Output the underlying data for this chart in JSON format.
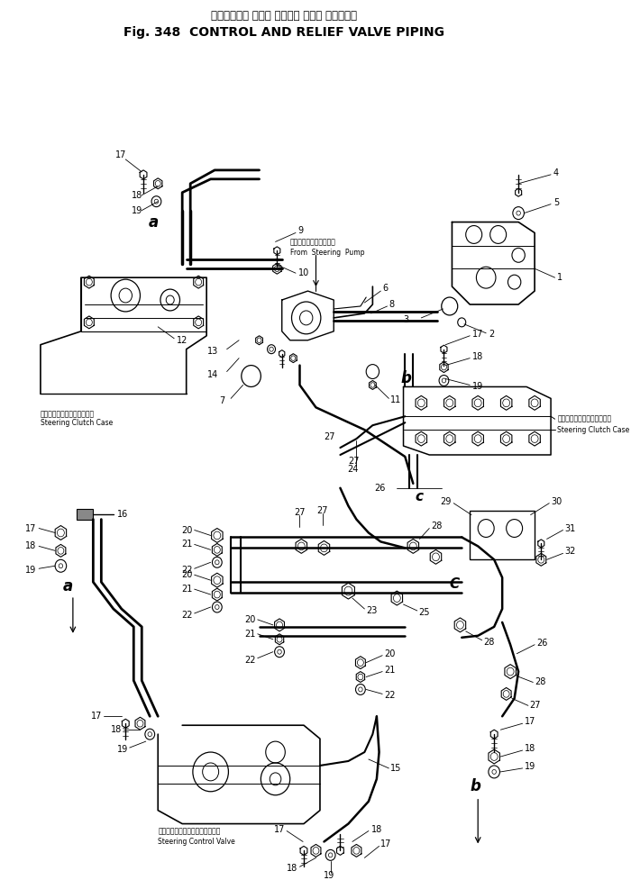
{
  "title_japanese": "コントロール および リリーフ バルブ パイピング",
  "title_english": "Fig. 348  CONTROL AND RELIEF VALVE PIPING",
  "background_color": "#ffffff",
  "line_color": "#000000",
  "text_color": "#000000",
  "fig_width": 7.0,
  "fig_height": 9.77,
  "dpi": 100,
  "sub_labels": {
    "steering_clutch_case_top_jp": "ステアリングクラッチケース",
    "steering_clutch_case_top_en": "Steering Clutch Case",
    "steering_clutch_case_right_jp": "ステアリングクラッチケース",
    "steering_clutch_case_right_en": "Steering Clutch Case",
    "from_steering_pump_jp": "ステアリングポンプから",
    "from_steering_pump_en": "From  Steering  Pump",
    "steering_control_valve_jp": "ステアリングコントロールバルブ",
    "steering_control_valve_en": "Steering Control Valve"
  }
}
